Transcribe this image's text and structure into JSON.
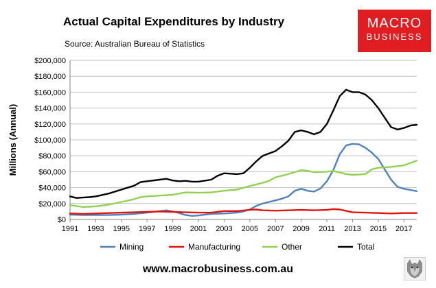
{
  "header": {
    "title": "Actual Capital Expenditures by Industry",
    "subtitle": "Source: Australian Bureau of Statistics"
  },
  "logo": {
    "line1": "MACRO",
    "line2": "BUSINESS",
    "color": "#e01e22"
  },
  "footer": {
    "url": "www.macrobusiness.com.au"
  },
  "chart_data": {
    "type": "line",
    "title": "Actual Capital Expenditures by Industry",
    "xlabel": "",
    "ylabel": "Millions (Annual)",
    "xlim": [
      1991,
      2018
    ],
    "ylim": [
      0,
      200000
    ],
    "y_ticks": [
      0,
      20000,
      40000,
      60000,
      80000,
      100000,
      120000,
      140000,
      160000,
      180000,
      200000
    ],
    "y_tick_labels": [
      "$0",
      "$20,000",
      "$40,000",
      "$60,000",
      "$80,000",
      "$100,000",
      "$120,000",
      "$140,000",
      "$160,000",
      "$180,000",
      "$200,000"
    ],
    "x_ticks": [
      1991,
      1993,
      1995,
      1997,
      1999,
      2001,
      2003,
      2005,
      2007,
      2009,
      2011,
      2013,
      2015,
      2017
    ],
    "x_tick_labels": [
      "1991",
      "1993",
      "1995",
      "1997",
      "1999",
      "2001",
      "2003",
      "2005",
      "2007",
      "2009",
      "2011",
      "2013",
      "2015",
      "2017"
    ],
    "grid": "horizontal",
    "legend_position": "bottom",
    "series": [
      {
        "name": "Mining",
        "color": "#4f81bd",
        "points": [
          [
            1991,
            6000
          ],
          [
            1992,
            5500
          ],
          [
            1993,
            5500
          ],
          [
            1994,
            5500
          ],
          [
            1995,
            6000
          ],
          [
            1996,
            7000
          ],
          [
            1997,
            8500
          ],
          [
            1998,
            10500
          ],
          [
            1998.5,
            11500
          ],
          [
            1999,
            10000
          ],
          [
            1999.5,
            8000
          ],
          [
            2000,
            5500
          ],
          [
            2000.5,
            4500
          ],
          [
            2001,
            5000
          ],
          [
            2001.5,
            6000
          ],
          [
            2002,
            7000
          ],
          [
            2003,
            7500
          ],
          [
            2004,
            8500
          ],
          [
            2004.5,
            10000
          ],
          [
            2005,
            12500
          ],
          [
            2005.5,
            17000
          ],
          [
            2006,
            20000
          ],
          [
            2006.5,
            22000
          ],
          [
            2007,
            24000
          ],
          [
            2007.5,
            26000
          ],
          [
            2008,
            29000
          ],
          [
            2008.5,
            36000
          ],
          [
            2009,
            38500
          ],
          [
            2009.5,
            36000
          ],
          [
            2010,
            35000
          ],
          [
            2010.5,
            39000
          ],
          [
            2011,
            48000
          ],
          [
            2011.5,
            62000
          ],
          [
            2012,
            82000
          ],
          [
            2012.5,
            93000
          ],
          [
            2013,
            95000
          ],
          [
            2013.5,
            94500
          ],
          [
            2014,
            90000
          ],
          [
            2014.5,
            84000
          ],
          [
            2015,
            76000
          ],
          [
            2015.5,
            63000
          ],
          [
            2016,
            50000
          ],
          [
            2016.5,
            41000
          ],
          [
            2017,
            38500
          ],
          [
            2017.5,
            37000
          ],
          [
            2018,
            35500
          ]
        ]
      },
      {
        "name": "Manufacturing",
        "color": "#e3120b",
        "points": [
          [
            1991,
            7500
          ],
          [
            1992,
            7000
          ],
          [
            1993,
            7500
          ],
          [
            1994,
            8000
          ],
          [
            1995,
            8500
          ],
          [
            1996,
            9000
          ],
          [
            1997,
            9500
          ],
          [
            1998,
            10000
          ],
          [
            1999,
            9500
          ],
          [
            2000,
            9000
          ],
          [
            2001,
            8500
          ],
          [
            2002,
            8500
          ],
          [
            2002.5,
            9500
          ],
          [
            2003,
            10500
          ],
          [
            2004,
            10500
          ],
          [
            2005,
            12000
          ],
          [
            2005.5,
            12500
          ],
          [
            2006,
            11500
          ],
          [
            2007,
            11000
          ],
          [
            2008,
            11500
          ],
          [
            2009,
            12000
          ],
          [
            2010,
            11500
          ],
          [
            2011,
            12000
          ],
          [
            2011.5,
            13000
          ],
          [
            2012,
            12500
          ],
          [
            2013,
            9000
          ],
          [
            2014,
            8500
          ],
          [
            2015,
            8000
          ],
          [
            2016,
            7500
          ],
          [
            2017,
            8000
          ],
          [
            2018,
            8000
          ]
        ]
      },
      {
        "name": "Other",
        "color": "#92d050",
        "points": [
          [
            1991,
            18000
          ],
          [
            1992,
            15500
          ],
          [
            1993,
            16500
          ],
          [
            1994,
            18500
          ],
          [
            1995,
            22000
          ],
          [
            1996,
            25500
          ],
          [
            1996.5,
            28000
          ],
          [
            1997,
            29000
          ],
          [
            1998,
            30000
          ],
          [
            1999,
            31000
          ],
          [
            2000,
            34000
          ],
          [
            2001,
            33500
          ],
          [
            2002,
            34000
          ],
          [
            2003,
            36000
          ],
          [
            2004,
            37500
          ],
          [
            2005,
            42000
          ],
          [
            2006,
            46000
          ],
          [
            2006.5,
            48500
          ],
          [
            2007,
            53000
          ],
          [
            2008,
            57000
          ],
          [
            2009,
            62000
          ],
          [
            2009.5,
            61000
          ],
          [
            2010,
            59500
          ],
          [
            2011,
            60000
          ],
          [
            2011.5,
            61000
          ],
          [
            2012,
            59000
          ],
          [
            2012.5,
            57000
          ],
          [
            2013,
            56000
          ],
          [
            2014,
            57000
          ],
          [
            2014.5,
            63000
          ],
          [
            2015,
            65000
          ],
          [
            2016,
            66000
          ],
          [
            2016.5,
            67000
          ],
          [
            2017,
            68000
          ],
          [
            2018,
            74000
          ]
        ]
      },
      {
        "name": "Total",
        "color": "#000000",
        "points": [
          [
            1991,
            29000
          ],
          [
            1991.5,
            27000
          ],
          [
            1992,
            27500
          ],
          [
            1992.5,
            28000
          ],
          [
            1993,
            29000
          ],
          [
            1994,
            32500
          ],
          [
            1995,
            37500
          ],
          [
            1996,
            42500
          ],
          [
            1996.5,
            47000
          ],
          [
            1997,
            48000
          ],
          [
            1998,
            50000
          ],
          [
            1998.5,
            51000
          ],
          [
            1999,
            49000
          ],
          [
            1999.5,
            48000
          ],
          [
            2000,
            48500
          ],
          [
            2000.5,
            47500
          ],
          [
            2001,
            47500
          ],
          [
            2002,
            50000
          ],
          [
            2002.5,
            55000
          ],
          [
            2003,
            58000
          ],
          [
            2003.5,
            57500
          ],
          [
            2004,
            57000
          ],
          [
            2004.5,
            58000
          ],
          [
            2005,
            65000
          ],
          [
            2005.5,
            73000
          ],
          [
            2006,
            80000
          ],
          [
            2006.5,
            83000
          ],
          [
            2007,
            86000
          ],
          [
            2007.5,
            92000
          ],
          [
            2008,
            99000
          ],
          [
            2008.5,
            110000
          ],
          [
            2009,
            112000
          ],
          [
            2009.5,
            110000
          ],
          [
            2010,
            107000
          ],
          [
            2010.5,
            110000
          ],
          [
            2011,
            120000
          ],
          [
            2011.5,
            137000
          ],
          [
            2012,
            155000
          ],
          [
            2012.5,
            163000
          ],
          [
            2013,
            160000
          ],
          [
            2013.5,
            160000
          ],
          [
            2014,
            157000
          ],
          [
            2014.5,
            150000
          ],
          [
            2015,
            140000
          ],
          [
            2015.5,
            128000
          ],
          [
            2016,
            116000
          ],
          [
            2016.5,
            113000
          ],
          [
            2017,
            115000
          ],
          [
            2017.5,
            118000
          ],
          [
            2018,
            119000
          ]
        ]
      }
    ]
  }
}
